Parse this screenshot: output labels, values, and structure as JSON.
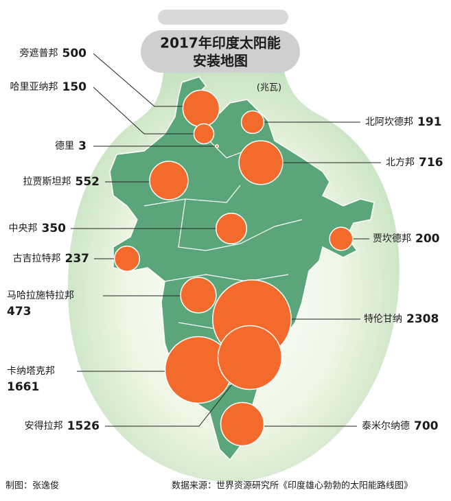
{
  "title_lines": [
    "2017年印度太阳能",
    "安装地图"
  ],
  "unit": "(兆瓦)",
  "regions": [
    {
      "name": "旁遮普邦",
      "value": 500
    },
    {
      "name": "哈里亚纳邦",
      "value": 150
    },
    {
      "name": "德里",
      "value": 3
    },
    {
      "name": "北阿坎德邦",
      "value": 191
    },
    {
      "name": "北方邦",
      "value": 716
    },
    {
      "name": "拉贾斯坦邦",
      "value": 552
    },
    {
      "name": "中央邦",
      "value": 350
    },
    {
      "name": "贾坎德邦",
      "value": 200
    },
    {
      "name": "古吉拉特邦",
      "value": 237
    },
    {
      "name": "马哈拉施特拉邦",
      "value": 473
    },
    {
      "name": "特伦甘纳",
      "value": 2308
    },
    {
      "name": "卡纳塔克邦",
      "value": 1661
    },
    {
      "name": "安得拉邦",
      "value": 1526
    },
    {
      "name": "泰米尔纳德",
      "value": 700
    }
  ],
  "credit": "制图：张逸俊",
  "source": "数据来源：世界资源研究所《印度雄心勃勃的太阳能路线图》"
}
